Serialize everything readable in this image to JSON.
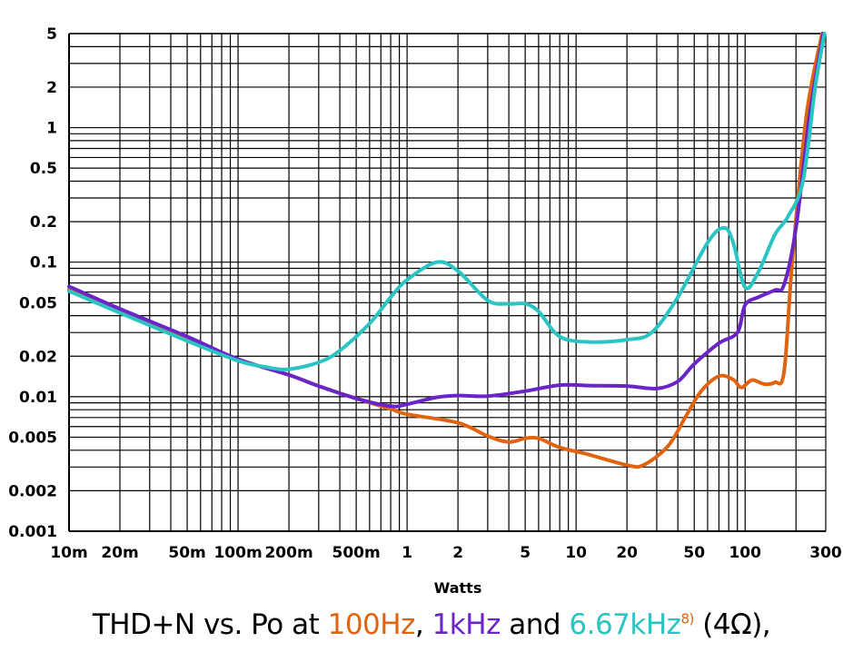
{
  "chart_data": {
    "type": "line",
    "xlabel": "Watts",
    "ylabel": "",
    "x_scale": "log",
    "y_scale": "log",
    "xlim": [
      0.01,
      300
    ],
    "ylim": [
      0.001,
      5
    ],
    "grid": true,
    "x_ticks": [
      {
        "value": 0.01,
        "label": "10m"
      },
      {
        "value": 0.02,
        "label": "20m"
      },
      {
        "value": 0.05,
        "label": "50m"
      },
      {
        "value": 0.1,
        "label": "100m"
      },
      {
        "value": 0.2,
        "label": "200m"
      },
      {
        "value": 0.5,
        "label": "500m"
      },
      {
        "value": 1,
        "label": "1"
      },
      {
        "value": 2,
        "label": "2"
      },
      {
        "value": 5,
        "label": "5"
      },
      {
        "value": 10,
        "label": "10"
      },
      {
        "value": 20,
        "label": "20"
      },
      {
        "value": 50,
        "label": "50"
      },
      {
        "value": 100,
        "label": "100"
      },
      {
        "value": 300,
        "label": "300"
      }
    ],
    "y_ticks": [
      {
        "value": 5,
        "label": "5"
      },
      {
        "value": 2,
        "label": "2"
      },
      {
        "value": 1,
        "label": "1"
      },
      {
        "value": 0.5,
        "label": "0.5"
      },
      {
        "value": 0.2,
        "label": "0.2"
      },
      {
        "value": 0.1,
        "label": "0.1"
      },
      {
        "value": 0.05,
        "label": "0.05"
      },
      {
        "value": 0.02,
        "label": "0.02"
      },
      {
        "value": 0.01,
        "label": "0.01"
      },
      {
        "value": 0.005,
        "label": "0.005"
      },
      {
        "value": 0.002,
        "label": "0.002"
      },
      {
        "value": 0.001,
        "label": "0.001"
      }
    ],
    "series": [
      {
        "name": "100Hz",
        "color": "#e0640f",
        "points": [
          [
            0.01,
            0.063
          ],
          [
            0.02,
            0.043
          ],
          [
            0.05,
            0.027
          ],
          [
            0.1,
            0.019
          ],
          [
            0.2,
            0.0145
          ],
          [
            0.3,
            0.012
          ],
          [
            0.5,
            0.0097
          ],
          [
            0.8,
            0.0081
          ],
          [
            1,
            0.0074
          ],
          [
            2,
            0.0064
          ],
          [
            3,
            0.0051
          ],
          [
            4,
            0.0046
          ],
          [
            5,
            0.0049
          ],
          [
            6,
            0.0049
          ],
          [
            8,
            0.0042
          ],
          [
            12,
            0.0037
          ],
          [
            20,
            0.0031
          ],
          [
            25,
            0.0031
          ],
          [
            35,
            0.0043
          ],
          [
            45,
            0.0073
          ],
          [
            55,
            0.011
          ],
          [
            70,
            0.0142
          ],
          [
            85,
            0.0134
          ],
          [
            95,
            0.0117
          ],
          [
            110,
            0.0133
          ],
          [
            130,
            0.0124
          ],
          [
            150,
            0.0128
          ],
          [
            170,
            0.0153
          ],
          [
            190,
            0.1
          ],
          [
            230,
            1.2
          ],
          [
            285,
            5
          ]
        ]
      },
      {
        "name": "1kHz",
        "color": "#6a24c8",
        "points": [
          [
            0.01,
            0.066
          ],
          [
            0.02,
            0.045
          ],
          [
            0.05,
            0.028
          ],
          [
            0.1,
            0.019
          ],
          [
            0.2,
            0.0145
          ],
          [
            0.3,
            0.012
          ],
          [
            0.5,
            0.0097
          ],
          [
            0.8,
            0.0085
          ],
          [
            1,
            0.0088
          ],
          [
            1.5,
            0.0099
          ],
          [
            2,
            0.0102
          ],
          [
            3,
            0.0101
          ],
          [
            5,
            0.011
          ],
          [
            8,
            0.0122
          ],
          [
            12,
            0.0121
          ],
          [
            20,
            0.012
          ],
          [
            30,
            0.0115
          ],
          [
            40,
            0.013
          ],
          [
            50,
            0.0175
          ],
          [
            70,
            0.025
          ],
          [
            90,
            0.03
          ],
          [
            100,
            0.048
          ],
          [
            120,
            0.055
          ],
          [
            150,
            0.062
          ],
          [
            170,
            0.068
          ],
          [
            200,
            0.18
          ],
          [
            240,
            1.2
          ],
          [
            290,
            5
          ]
        ]
      },
      {
        "name": "6.67kHz",
        "color": "#2bc4c4",
        "points": [
          [
            0.01,
            0.061
          ],
          [
            0.02,
            0.042
          ],
          [
            0.05,
            0.026
          ],
          [
            0.1,
            0.0185
          ],
          [
            0.15,
            0.0165
          ],
          [
            0.2,
            0.016
          ],
          [
            0.3,
            0.018
          ],
          [
            0.4,
            0.022
          ],
          [
            0.6,
            0.035
          ],
          [
            0.8,
            0.055
          ],
          [
            1,
            0.074
          ],
          [
            1.5,
            0.1
          ],
          [
            2,
            0.086
          ],
          [
            3,
            0.052
          ],
          [
            4,
            0.049
          ],
          [
            5,
            0.049
          ],
          [
            6,
            0.043
          ],
          [
            8,
            0.028
          ],
          [
            12,
            0.0255
          ],
          [
            20,
            0.0265
          ],
          [
            28,
            0.03
          ],
          [
            40,
            0.055
          ],
          [
            60,
            0.14
          ],
          [
            75,
            0.18
          ],
          [
            85,
            0.14
          ],
          [
            100,
            0.065
          ],
          [
            120,
            0.085
          ],
          [
            150,
            0.16
          ],
          [
            180,
            0.22
          ],
          [
            220,
            0.4
          ],
          [
            260,
            2
          ],
          [
            295,
            5
          ]
        ]
      }
    ]
  },
  "caption": {
    "prefix": "THD+N vs. Po at ",
    "f1": "100Hz",
    "sep1": ", ",
    "f2": "1kHz",
    "sep2": " and ",
    "f3": "6.67kHz",
    "sup": "8)",
    "suffix": " (4Ω),"
  }
}
